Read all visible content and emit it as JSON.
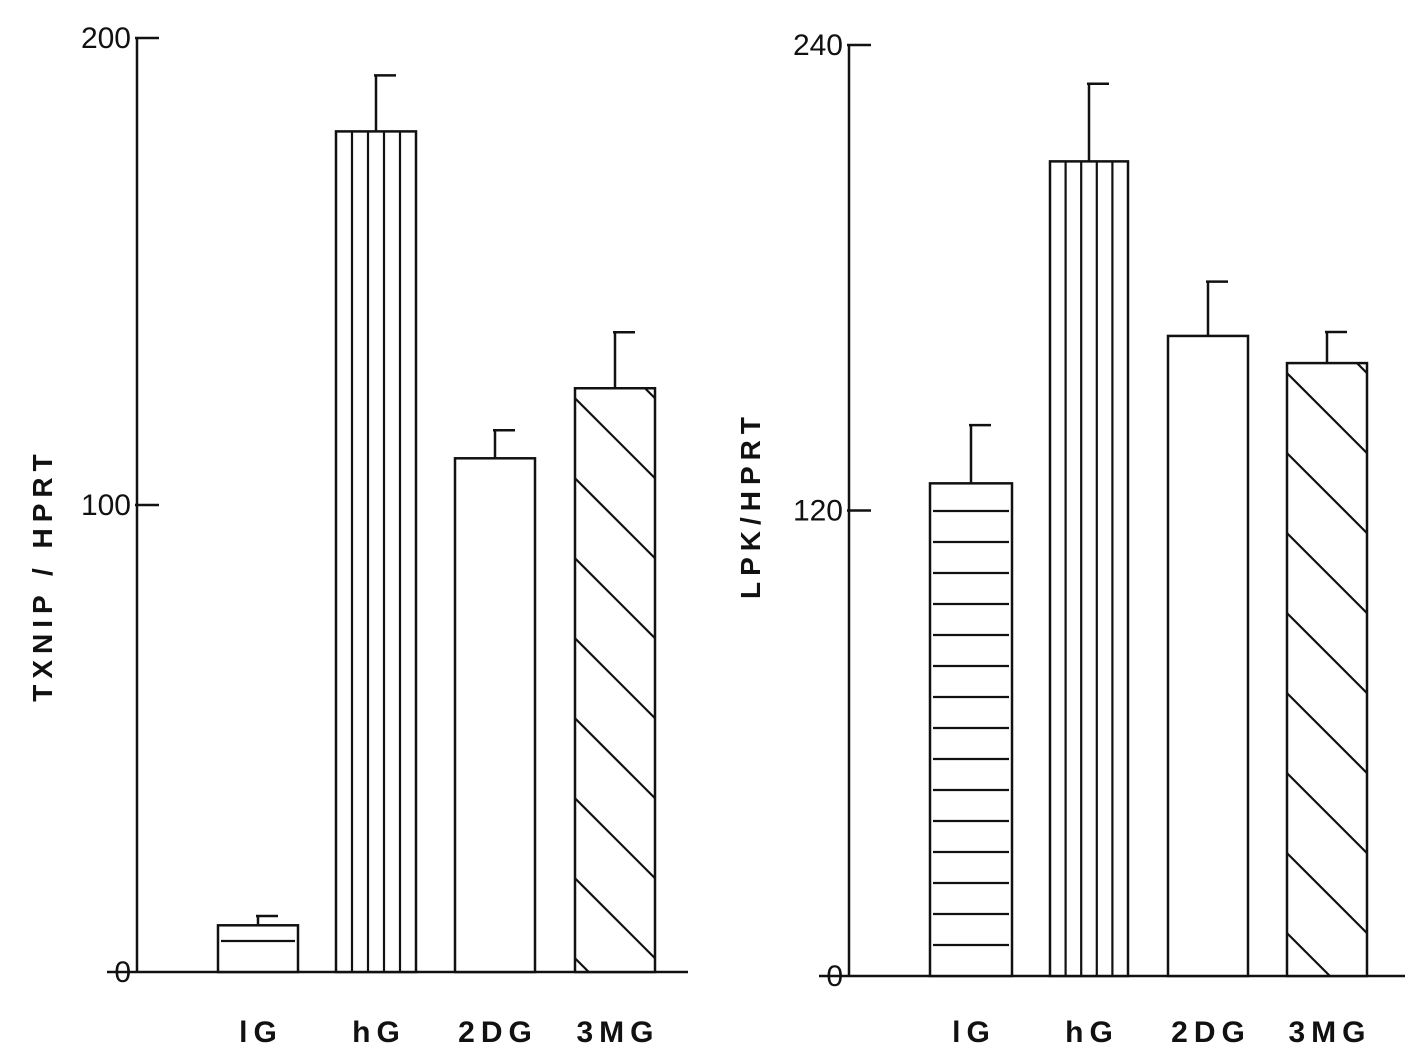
{
  "chart_data": [
    {
      "type": "bar",
      "ylabel": "TXNIP / HPRT",
      "categories": [
        "lG",
        "hG",
        "2DG",
        "3MG"
      ],
      "values": [
        10,
        180,
        110,
        125
      ],
      "errors": [
        2,
        12,
        6,
        12
      ],
      "patterns": [
        "horizontal",
        "vertical",
        "none",
        "diagonal"
      ],
      "ylim": [
        0,
        200
      ],
      "yticks": [
        {
          "value": 0,
          "label": "0"
        },
        {
          "value": 100,
          "label": "100"
        },
        {
          "value": 200,
          "label": "200"
        }
      ],
      "grid": false,
      "legend": "none"
    },
    {
      "type": "bar",
      "ylabel": "LPK/HPRT",
      "categories": [
        "lG",
        "hG",
        "2DG",
        "3MG"
      ],
      "values": [
        127,
        210,
        165,
        158
      ],
      "errors": [
        15,
        20,
        14,
        8
      ],
      "patterns": [
        "horizontal",
        "vertical",
        "none",
        "diagonal"
      ],
      "ylim": [
        0,
        240
      ],
      "yticks": [
        {
          "value": 0,
          "label": "0"
        },
        {
          "value": 120,
          "label": "120"
        },
        {
          "value": 240,
          "label": "240"
        }
      ],
      "grid": false,
      "legend": "none"
    }
  ]
}
